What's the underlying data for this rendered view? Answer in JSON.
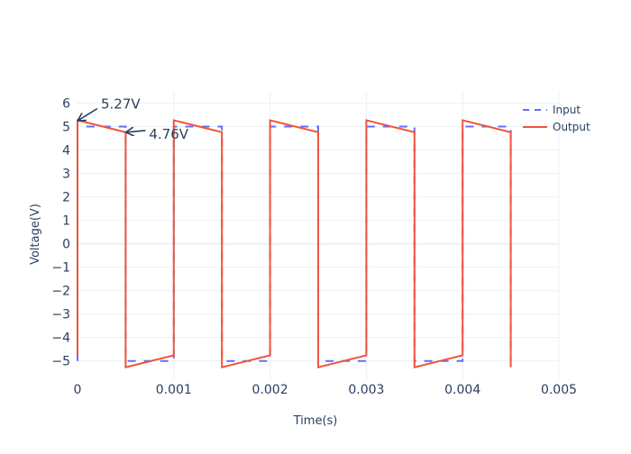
{
  "chart_data": {
    "type": "line",
    "title": "",
    "xlabel": "Time(s)",
    "ylabel": "Voltage(V)",
    "xlim": [
      0,
      0.005
    ],
    "ylim": [
      -5.8,
      6.5
    ],
    "x_ticks": [
      0,
      0.001,
      0.002,
      0.003,
      0.004,
      0.005
    ],
    "x_tick_labels": [
      "0",
      "0.001",
      "0.002",
      "0.003",
      "0.004",
      "0.005"
    ],
    "y_ticks": [
      -5,
      -4,
      -3,
      -2,
      -1,
      0,
      1,
      2,
      3,
      4,
      5,
      6
    ],
    "y_tick_labels": [
      "−5",
      "−4",
      "−3",
      "−2",
      "−1",
      "0",
      "1",
      "2",
      "3",
      "4",
      "5",
      "6"
    ],
    "grid": true,
    "legend_position": "top-right",
    "series": [
      {
        "name": "Input",
        "style": "dash",
        "color": "#636efa",
        "x": [
          0,
          0,
          0.0005,
          0.0005,
          0.001,
          0.001,
          0.0015,
          0.0015,
          0.002,
          0.002,
          0.0025,
          0.0025,
          0.003,
          0.003,
          0.0035,
          0.0035,
          0.004,
          0.004,
          0.0045,
          0.0045
        ],
        "y": [
          -5,
          5,
          5,
          -5,
          -5,
          5,
          5,
          -5,
          -5,
          5,
          5,
          -5,
          -5,
          5,
          5,
          -5,
          -5,
          5,
          5,
          -5
        ]
      },
      {
        "name": "Output",
        "style": "solid",
        "color": "#ef553b",
        "x": [
          0,
          0,
          0.0005,
          0.0005,
          0.001,
          0.001,
          0.0015,
          0.0015,
          0.002,
          0.002,
          0.0025,
          0.0025,
          0.003,
          0.003,
          0.0035,
          0.0035,
          0.004,
          0.004,
          0.0045,
          0.0045
        ],
        "y": [
          -4.76,
          5.27,
          4.76,
          -5.27,
          -4.76,
          5.27,
          4.76,
          -5.27,
          -4.76,
          5.27,
          4.76,
          -5.27,
          -4.76,
          5.27,
          4.76,
          -5.27,
          -4.76,
          5.27,
          4.76,
          -5.27
        ]
      }
    ],
    "annotations": [
      {
        "text": "5.27V",
        "x": 0,
        "y": 5.27
      },
      {
        "text": "4.76V",
        "x": 0.0005,
        "y": 4.76
      }
    ]
  }
}
